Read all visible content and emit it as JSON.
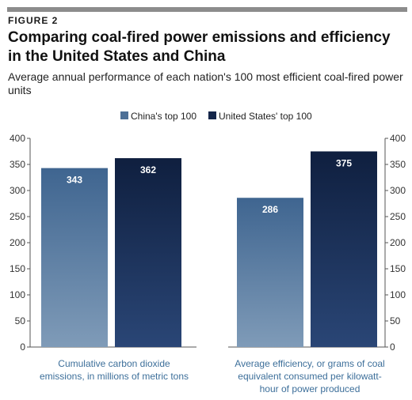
{
  "figure_label": "FIGURE 2",
  "title": "Comparing coal-fired power emissions and efficiency in the United States and China",
  "subtitle": "Average annual performance of each nation's 100 most efficient coal-fired power units",
  "chart_data": {
    "type": "bar",
    "legend_position": "top-center",
    "grid": false,
    "ylim": [
      0,
      400
    ],
    "yticks": [
      0,
      50,
      100,
      150,
      200,
      250,
      300,
      350,
      400
    ],
    "categories": [
      "Cumulative carbon dioxide emissions, in millions of metric tons",
      "Average efficiency, or grams of coal equivalent consumed per kilowatt-hour of power produced"
    ],
    "series": [
      {
        "name": "China's top 100",
        "values": [
          343,
          286
        ],
        "color": "#4d7097"
      },
      {
        "name": "United States' top 100",
        "values": [
          362,
          375
        ],
        "color": "#14264a"
      }
    ]
  }
}
